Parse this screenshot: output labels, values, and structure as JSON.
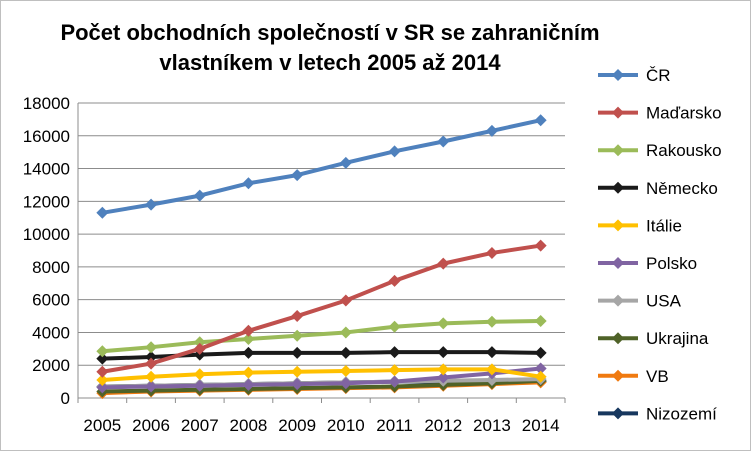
{
  "chart_data": {
    "type": "line",
    "title_line1": "Počet obchodních společností v SR se zahraničním",
    "title_line2": "vlastníkem v letech 2005 až 2014",
    "x": [
      "2005",
      "2006",
      "2007",
      "2008",
      "2009",
      "2010",
      "2011",
      "2012",
      "2013",
      "2014"
    ],
    "ylim": [
      0,
      18000
    ],
    "yticks": [
      "0",
      "2000",
      "4000",
      "6000",
      "8000",
      "10000",
      "12000",
      "14000",
      "16000",
      "18000"
    ],
    "grid": true,
    "legend_position": "right",
    "series": [
      {
        "name": "ČR",
        "color": "#4f81bd",
        "values": [
          11300,
          11800,
          12350,
          13100,
          13600,
          14350,
          15050,
          15650,
          16300,
          16950
        ]
      },
      {
        "name": "Maďarsko",
        "color": "#c0504d",
        "values": [
          1600,
          2100,
          3000,
          4100,
          5000,
          5950,
          7150,
          8200,
          8850,
          9300
        ]
      },
      {
        "name": "Rakousko",
        "color": "#9bbb59",
        "values": [
          2850,
          3100,
          3400,
          3600,
          3800,
          4000,
          4350,
          4550,
          4650,
          4700
        ]
      },
      {
        "name": "Německo",
        "color": "#1a1a1a",
        "values": [
          2400,
          2500,
          2650,
          2750,
          2750,
          2750,
          2800,
          2800,
          2800,
          2750
        ]
      },
      {
        "name": "Itálie",
        "color": "#ffc000",
        "values": [
          1100,
          1300,
          1450,
          1550,
          1600,
          1650,
          1700,
          1750,
          1750,
          1300
        ]
      },
      {
        "name": "Polsko",
        "color": "#8064a2",
        "values": [
          650,
          700,
          750,
          800,
          850,
          900,
          1000,
          1250,
          1500,
          1800
        ]
      },
      {
        "name": "USA",
        "color": "#a6a6a6",
        "values": [
          700,
          750,
          800,
          850,
          900,
          950,
          1000,
          1050,
          1100,
          1150
        ]
      },
      {
        "name": "Ukrajina",
        "color": "#4f6228",
        "values": [
          400,
          450,
          500,
          550,
          600,
          650,
          700,
          800,
          900,
          1050
        ]
      },
      {
        "name": "VB",
        "color": "#f07a10",
        "values": [
          300,
          400,
          450,
          500,
          550,
          600,
          650,
          750,
          850,
          950
        ]
      },
      {
        "name": "Nizozemí",
        "color": "#17375e",
        "values": [
          700,
          750,
          800,
          850,
          900,
          950,
          1000,
          1000,
          1000,
          1000
        ]
      }
    ]
  }
}
